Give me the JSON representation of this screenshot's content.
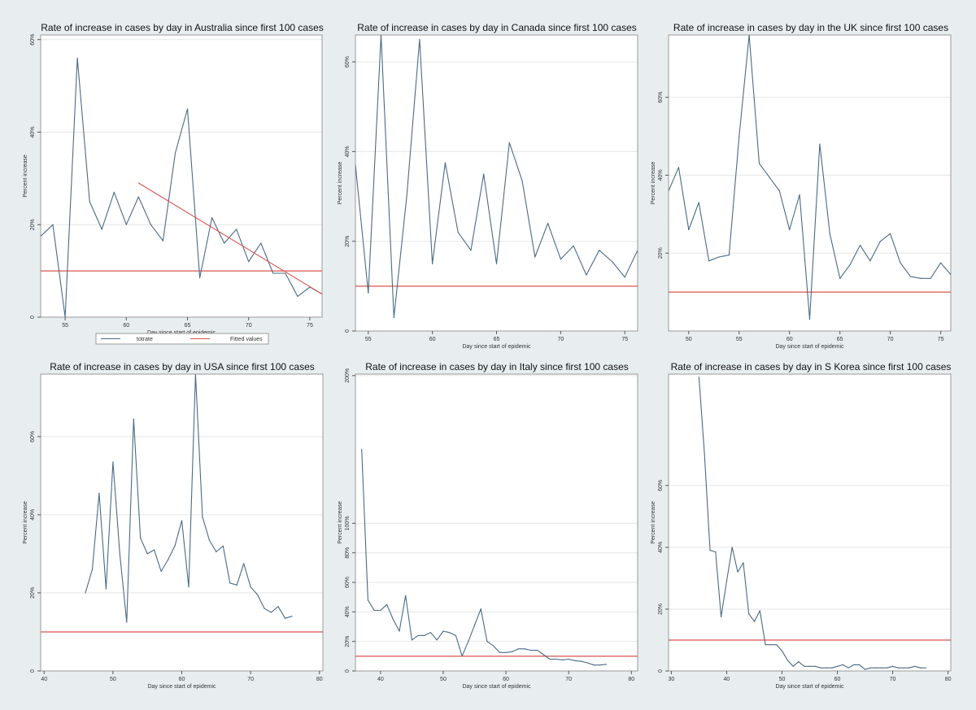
{
  "figure": {
    "background": "#e8eef0",
    "plot_background": "#ffffff",
    "series_color": "#4a6a86",
    "reference_color": "#d9534f",
    "grid_color": "#e6e6e6"
  },
  "legend": {
    "items": [
      "totrate",
      "Fitted values"
    ]
  },
  "chart_data": [
    {
      "type": "line",
      "title": "Rate of increase in cases by day in Australia since first 100 cases",
      "xlabel": "Day since start of epidemic",
      "ylabel": "Percent increase",
      "xlim": [
        53,
        76
      ],
      "ylim": [
        0,
        61
      ],
      "xticks": [
        55,
        60,
        65,
        70,
        75
      ],
      "xtick_labels": [
        "55",
        "60",
        "65",
        "70",
        "75"
      ],
      "yticks": [
        0,
        20,
        40,
        60
      ],
      "ytick_labels": [
        "0",
        "20%",
        "40%",
        "60%"
      ],
      "grid": true,
      "series": [
        {
          "name": "totrate",
          "x": [
            53,
            54,
            55,
            56,
            57,
            58,
            59,
            60,
            61,
            62,
            63,
            64,
            65,
            66,
            67,
            68,
            69,
            70,
            71,
            72,
            73,
            74,
            75,
            76
          ],
          "values": [
            17.5,
            20,
            0,
            56,
            25,
            19,
            27,
            20,
            26,
            20,
            16.5,
            35.5,
            45,
            8.5,
            21.5,
            16,
            19,
            12,
            16,
            9.5,
            9.5,
            4.5,
            6.5,
            5
          ]
        },
        {
          "name": "Fitted values",
          "x": [
            61,
            76
          ],
          "values": [
            29,
            5
          ]
        }
      ],
      "reference_line": 10
    },
    {
      "type": "line",
      "title": "Rate of increase in cases by day in Canada since first 100 cases",
      "xlabel": "Day since start of epidemic",
      "ylabel": "Percent increase",
      "xlim": [
        54,
        76
      ],
      "ylim": [
        0,
        66
      ],
      "xticks": [
        55,
        60,
        65,
        70,
        75
      ],
      "xtick_labels": [
        "55",
        "60",
        "65",
        "70",
        "75"
      ],
      "yticks": [
        0,
        20,
        40,
        60
      ],
      "ytick_labels": [
        "0",
        "20%",
        "40%",
        "60%"
      ],
      "grid": true,
      "series": [
        {
          "name": "totrate",
          "x": [
            54,
            55,
            56,
            57,
            58,
            59,
            60,
            61,
            62,
            63,
            64,
            65,
            66,
            67,
            68,
            69,
            70,
            71,
            72,
            73,
            74,
            75,
            76
          ],
          "values": [
            37,
            8.5,
            66,
            3,
            30,
            65,
            15,
            37.5,
            22,
            18,
            35,
            15,
            42,
            33.5,
            16.5,
            24,
            16,
            19,
            12.5,
            18,
            15.5,
            12,
            18
          ]
        }
      ],
      "reference_line": 10
    },
    {
      "type": "line",
      "title": "Rate of increase in cases by day in the UK since first 100 cases",
      "xlabel": "Day since start of epidemic",
      "ylabel": "Percent increase",
      "xlim": [
        48,
        76
      ],
      "ylim": [
        0,
        76
      ],
      "xticks": [
        50,
        55,
        60,
        65,
        70,
        75
      ],
      "xtick_labels": [
        "50",
        "55",
        "60",
        "65",
        "70",
        "75"
      ],
      "yticks": [
        20,
        40,
        60
      ],
      "ytick_labels": [
        "20%",
        "40%",
        "60%"
      ],
      "grid": true,
      "series": [
        {
          "name": "totrate",
          "x": [
            48,
            49,
            50,
            51,
            52,
            53,
            54,
            55,
            56,
            57,
            58,
            59,
            60,
            61,
            62,
            63,
            64,
            65,
            66,
            67,
            68,
            69,
            70,
            71,
            72,
            73,
            74,
            75,
            76
          ],
          "values": [
            36,
            42,
            26,
            33,
            18,
            19,
            19.5,
            50,
            76,
            43,
            39.5,
            36,
            26,
            35,
            3,
            48,
            25,
            13.5,
            17,
            22,
            18,
            23,
            25,
            17.5,
            14,
            13.5,
            13.5,
            17.5,
            14.5
          ]
        }
      ],
      "reference_line": 10
    },
    {
      "type": "line",
      "title": "Rate of increase in cases by day in USA since first 100 cases",
      "xlabel": "Day since start of epidemic",
      "ylabel": "Percent increase",
      "xlim": [
        39.5,
        80.5
      ],
      "ylim": [
        0,
        76
      ],
      "xticks": [
        40,
        50,
        60,
        70,
        80
      ],
      "xtick_labels": [
        "40",
        "50",
        "60",
        "70",
        "80"
      ],
      "yticks": [
        0,
        20,
        40,
        60
      ],
      "ytick_labels": [
        "0",
        "20%",
        "40%",
        "60%"
      ],
      "grid": true,
      "series": [
        {
          "name": "totrate",
          "x": [
            46,
            47,
            48,
            49,
            50,
            51,
            52,
            53,
            54,
            55,
            56,
            57,
            58,
            59,
            60,
            61,
            62,
            63,
            64,
            65,
            66,
            67,
            68,
            69,
            70,
            71,
            72,
            73,
            74,
            75,
            76
          ],
          "values": [
            20,
            26,
            45.5,
            21,
            53.5,
            30,
            12.5,
            64.5,
            34,
            30,
            31,
            25.5,
            28.5,
            32,
            38.5,
            21.5,
            76,
            39.5,
            33.5,
            30.5,
            32,
            22.5,
            22,
            27.5,
            21.5,
            19.5,
            16,
            15,
            16.5,
            13.5,
            14
          ]
        }
      ],
      "reference_line": 10
    },
    {
      "type": "line",
      "title": "Rate of increase in cases by day in Italy since first 100 cases",
      "xlabel": "Day since start of epidemic",
      "ylabel": "Percent increase",
      "xlim": [
        36,
        81
      ],
      "ylim": [
        0,
        201
      ],
      "xticks": [
        40,
        50,
        60,
        70,
        80
      ],
      "xtick_labels": [
        "40",
        "50",
        "60",
        "70",
        "80"
      ],
      "yticks": [
        0,
        20,
        40,
        60,
        80,
        100,
        200
      ],
      "ytick_labels": [
        "0",
        "20%",
        "40%",
        "60%",
        "80%",
        "100%",
        "200%"
      ],
      "grid": true,
      "series": [
        {
          "name": "totrate",
          "x": [
            37,
            38,
            39,
            40,
            41,
            42,
            43,
            44,
            45,
            46,
            47,
            48,
            49,
            50,
            51,
            52,
            53,
            54,
            55,
            56,
            57,
            58,
            59,
            60,
            61,
            62,
            63,
            64,
            65,
            66,
            67,
            68,
            69,
            70,
            71,
            72,
            73,
            74,
            75,
            76
          ],
          "values": [
            150,
            48,
            41,
            41,
            45,
            35,
            27,
            51,
            21,
            24,
            24,
            26,
            21,
            27,
            26,
            24,
            10,
            20,
            31,
            42,
            20,
            17,
            12.5,
            12.5,
            13,
            15,
            15,
            14,
            14,
            11,
            8,
            8,
            7.5,
            8,
            7,
            6.5,
            5.5,
            4,
            4,
            4.5
          ]
        }
      ],
      "reference_line": 10
    },
    {
      "type": "line",
      "title": "Rate of increase in cases by day in S Korea since first 100 cases",
      "xlabel": "Day since start of epidemic",
      "ylabel": "Percent increase",
      "xlim": [
        29.5,
        80.5
      ],
      "ylim": [
        0,
        96
      ],
      "xticks": [
        30,
        40,
        50,
        60,
        70,
        80
      ],
      "xtick_labels": [
        "30",
        "40",
        "50",
        "60",
        "70",
        "80"
      ],
      "yticks": [
        0,
        20,
        40,
        60
      ],
      "ytick_labels": [
        "0",
        "20%",
        "40%",
        "60%"
      ],
      "grid": true,
      "series": [
        {
          "name": "totrate",
          "x": [
            35,
            36,
            37,
            38,
            39,
            40,
            41,
            42,
            43,
            44,
            45,
            46,
            47,
            48,
            49,
            50,
            51,
            52,
            53,
            54,
            55,
            56,
            57,
            58,
            59,
            60,
            61,
            62,
            63,
            64,
            65,
            66,
            67,
            68,
            69,
            70,
            71,
            72,
            73,
            74,
            75,
            76
          ],
          "values": [
            95,
            70,
            39,
            38.5,
            17.5,
            29,
            40,
            32,
            35,
            18.5,
            16,
            19.5,
            8.5,
            8.5,
            8.5,
            6.5,
            3.5,
            1.5,
            3,
            1.5,
            1.5,
            1.5,
            1,
            1,
            1,
            1.5,
            2,
            1,
            2,
            2,
            0.5,
            1,
            1,
            1,
            1,
            1.5,
            1,
            1,
            1,
            1.5,
            1,
            1
          ]
        }
      ],
      "reference_line": 10
    }
  ]
}
